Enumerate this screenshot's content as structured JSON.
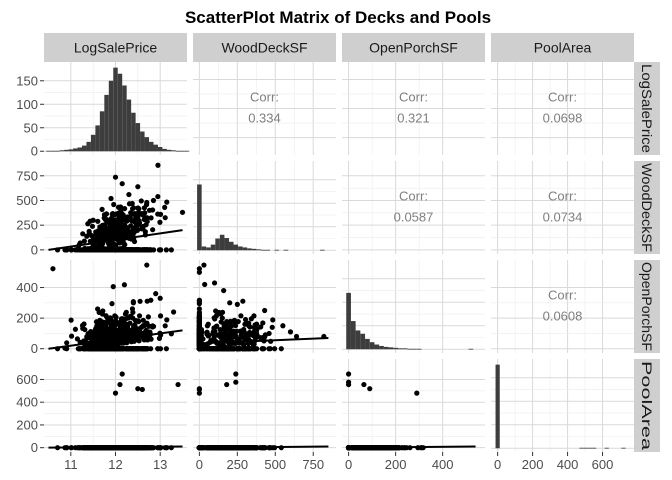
{
  "chart_data": {
    "type": "scatter_matrix",
    "title": "ScatterPlot Matrix of Decks and Pools",
    "variables": [
      "LogSalePrice",
      "WoodDeckSF",
      "OpenPorchSF",
      "PoolArea"
    ],
    "axes": {
      "LogSalePrice": {
        "range": [
          10.4,
          13.6
        ],
        "ticks": [
          11,
          12,
          13
        ],
        "tick_labels": [
          "11",
          "12",
          "13"
        ]
      },
      "WoodDeckSF": {
        "range": [
          -42,
          900
        ],
        "ticks": [
          0,
          250,
          500,
          750
        ],
        "tick_labels": [
          "0",
          "250",
          "500",
          "750"
        ]
      },
      "OpenPorchSF": {
        "range": [
          -28,
          580
        ],
        "ticks": [
          0,
          200,
          400
        ],
        "tick_labels": [
          "0",
          "200",
          "400"
        ]
      },
      "PoolArea": {
        "range": [
          -38,
          780
        ],
        "ticks": [
          0,
          200,
          400,
          600
        ],
        "tick_labels": [
          "0",
          "200",
          "400",
          "600"
        ]
      }
    },
    "diag_count_axis": {
      "range": [
        -8,
        190
      ],
      "ticks": [
        0,
        50,
        100,
        150
      ],
      "tick_labels": [
        "0",
        "50",
        "100",
        "150"
      ]
    },
    "correlations": {
      "corr_label": "Corr:",
      "pairs": [
        {
          "row": "LogSalePrice",
          "col": "WoodDeckSF",
          "value": "0.334"
        },
        {
          "row": "LogSalePrice",
          "col": "OpenPorchSF",
          "value": "0.321"
        },
        {
          "row": "LogSalePrice",
          "col": "PoolArea",
          "value": "0.0698"
        },
        {
          "row": "WoodDeckSF",
          "col": "OpenPorchSF",
          "value": "0.0587"
        },
        {
          "row": "WoodDeckSF",
          "col": "PoolArea",
          "value": "0.0734"
        },
        {
          "row": "OpenPorchSF",
          "col": "PoolArea",
          "value": "0.0608"
        }
      ]
    },
    "histograms": {
      "LogSalePrice": {
        "bin_start": 10.45,
        "bin_width": 0.1,
        "counts": [
          1,
          1,
          1,
          2,
          3,
          4,
          6,
          8,
          12,
          20,
          35,
          55,
          85,
          120,
          150,
          178,
          165,
          140,
          110,
          82,
          60,
          42,
          30,
          20,
          14,
          9,
          5,
          3,
          2,
          1,
          1,
          1
        ]
      },
      "WoodDeckSF": {
        "bin_start": -15,
        "bin_width": 30,
        "counts": [
          140,
          8,
          6,
          12,
          25,
          33,
          26,
          18,
          12,
          8,
          6,
          4,
          3,
          2,
          1,
          1,
          0,
          1,
          0,
          1,
          0,
          0,
          0,
          0,
          0,
          0,
          0,
          1,
          0
        ]
      },
      "OpenPorchSF": {
        "bin_start": -10,
        "bin_width": 20,
        "counts": [
          120,
          60,
          40,
          33,
          22,
          15,
          10,
          7,
          5,
          4,
          3,
          2,
          2,
          1,
          1,
          1,
          0,
          0,
          0,
          0,
          0,
          0,
          0,
          0,
          0,
          0,
          1
        ]
      },
      "PoolArea": {
        "bin_start": -12,
        "bin_width": 24,
        "counts": [
          178,
          0,
          0,
          0,
          0,
          0,
          0,
          0,
          0,
          0,
          0,
          0,
          0,
          0,
          0,
          0,
          0,
          0,
          0,
          0,
          1,
          1,
          1,
          1,
          0,
          0,
          1,
          0,
          0,
          0,
          1
        ]
      }
    },
    "outliers": {
      "LogSalePrice_WoodDeckSF": [
        [
          12.0,
          736
        ],
        [
          12.15,
          670
        ],
        [
          12.5,
          640
        ],
        [
          12.95,
          857
        ],
        [
          13.5,
          380
        ],
        [
          12.3,
          560
        ],
        [
          11.9,
          520
        ],
        [
          12.7,
          480
        ],
        [
          13.1,
          430
        ],
        [
          11.7,
          410
        ],
        [
          12.85,
          500
        ],
        [
          11.5,
          300
        ]
      ],
      "LogSalePrice_OpenPorchSF": [
        [
          10.6,
          523
        ],
        [
          12.7,
          547
        ],
        [
          12.2,
          418
        ],
        [
          11.95,
          406
        ],
        [
          12.9,
          360
        ],
        [
          13.0,
          330
        ],
        [
          12.4,
          300
        ],
        [
          11.6,
          260
        ],
        [
          13.3,
          240
        ],
        [
          12.55,
          310
        ]
      ],
      "LogSalePrice_PoolArea": [
        [
          12.0,
          480
        ],
        [
          12.1,
          555
        ],
        [
          12.15,
          648
        ],
        [
          12.5,
          519
        ],
        [
          12.6,
          512
        ],
        [
          13.4,
          555
        ]
      ],
      "WoodDeckSF_OpenPorchSF": [
        [
          0,
          523
        ],
        [
          30,
          547
        ],
        [
          0,
          500
        ],
        [
          35,
          420
        ],
        [
          100,
          430
        ],
        [
          200,
          300
        ],
        [
          250,
          290
        ],
        [
          430,
          250
        ],
        [
          550,
          150
        ],
        [
          600,
          110
        ],
        [
          640,
          80
        ],
        [
          820,
          80
        ],
        [
          300,
          160
        ],
        [
          380,
          130
        ],
        [
          480,
          140
        ],
        [
          160,
          380
        ]
      ],
      "WoodDeckSF_PoolArea": [
        [
          0,
          512
        ],
        [
          0,
          519
        ],
        [
          180,
          555
        ],
        [
          240,
          576
        ],
        [
          240,
          648
        ],
        [
          0,
          480
        ]
      ],
      "OpenPorchSF_PoolArea": [
        [
          0,
          648
        ],
        [
          0,
          576
        ],
        [
          0,
          555
        ],
        [
          65,
          555
        ],
        [
          90,
          519
        ],
        [
          290,
          480
        ]
      ]
    }
  }
}
